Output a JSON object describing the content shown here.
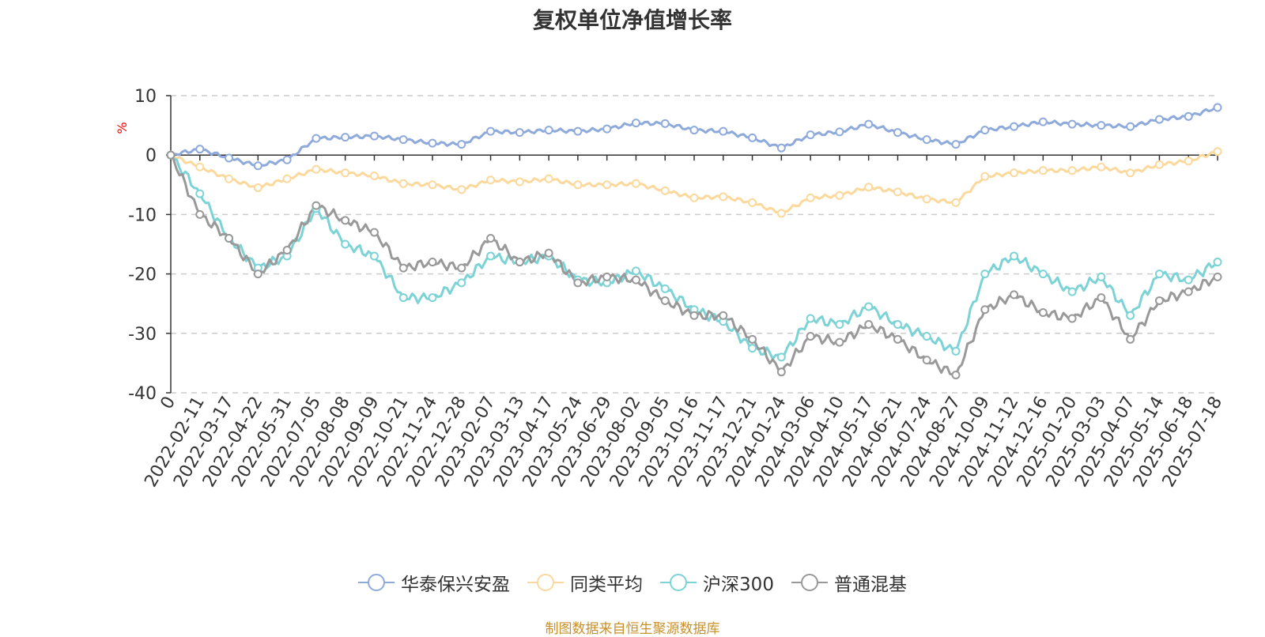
{
  "chart_data": {
    "type": "line",
    "title": "复权单位净值增长率",
    "ylabel": "%",
    "ylim": [
      -40,
      10
    ],
    "yticks": [
      "10",
      "0",
      "-10",
      "-20",
      "-30",
      "-40"
    ],
    "grid": true,
    "legend_position": "bottom",
    "x": [
      "0",
      "2022-02-11",
      "2022-03-17",
      "2022-04-22",
      "2022-05-31",
      "2022-07-05",
      "2022-08-08",
      "2022-09-09",
      "2022-10-21",
      "2022-11-24",
      "2022-12-28",
      "2023-02-07",
      "2023-03-13",
      "2023-04-17",
      "2023-05-24",
      "2023-06-29",
      "2023-08-02",
      "2023-09-05",
      "2023-10-16",
      "2023-11-17",
      "2023-12-21",
      "2024-01-24",
      "2024-03-06",
      "2024-04-10",
      "2024-05-17",
      "2024-06-21",
      "2024-07-24",
      "2024-08-27",
      "2024-10-09",
      "2024-11-12",
      "2024-12-16",
      "2025-01-20",
      "2025-03-03",
      "2025-04-07",
      "2025-05-14",
      "2025-06-18",
      "2025-07-18"
    ],
    "series": [
      {
        "name": "华泰保兴安盈",
        "color": "#8eaadb",
        "values": [
          0,
          1.0,
          -0.5,
          -1.8,
          -0.8,
          2.8,
          3.0,
          3.2,
          2.6,
          2.0,
          1.8,
          4.0,
          3.8,
          4.2,
          4.0,
          4.4,
          5.4,
          5.3,
          4.2,
          4.0,
          2.9,
          1.2,
          3.4,
          3.9,
          5.2,
          3.8,
          2.6,
          1.8,
          4.2,
          4.8,
          5.6,
          5.2,
          5.0,
          4.8,
          6.0,
          6.5,
          8.0
        ]
      },
      {
        "name": "同类平均",
        "color": "#fbd89c",
        "values": [
          0,
          -2.0,
          -4.0,
          -5.5,
          -4.0,
          -2.4,
          -3.0,
          -3.5,
          -4.8,
          -5.0,
          -5.8,
          -4.2,
          -4.5,
          -4.0,
          -5.0,
          -5.0,
          -4.8,
          -6.0,
          -7.2,
          -7.0,
          -8.0,
          -9.8,
          -7.2,
          -6.8,
          -5.4,
          -6.2,
          -7.4,
          -8.0,
          -3.6,
          -3.0,
          -2.6,
          -2.6,
          -2.0,
          -3.0,
          -1.6,
          -1.0,
          0.6
        ]
      },
      {
        "name": "沪深300",
        "color": "#7bd3d6",
        "values": [
          0,
          -6.5,
          -14.0,
          -19.0,
          -17.0,
          -9.0,
          -15.0,
          -17.0,
          -24.0,
          -24.0,
          -21.5,
          -17.0,
          -18.0,
          -17.0,
          -21.0,
          -21.5,
          -19.5,
          -22.5,
          -26.0,
          -28.0,
          -32.5,
          -34.0,
          -27.5,
          -28.5,
          -25.5,
          -28.5,
          -30.5,
          -33.0,
          -20.0,
          -17.0,
          -20.0,
          -23.0,
          -20.5,
          -27.0,
          -20.0,
          -21.0,
          -18.0
        ]
      },
      {
        "name": "普通混基",
        "color": "#999999",
        "values": [
          0,
          -10.0,
          -14.0,
          -20.0,
          -16.0,
          -8.5,
          -11.0,
          -13.0,
          -19.0,
          -18.0,
          -19.0,
          -14.0,
          -18.0,
          -16.5,
          -21.5,
          -20.5,
          -21.0,
          -24.5,
          -27.0,
          -27.0,
          -31.0,
          -36.5,
          -30.5,
          -31.5,
          -28.5,
          -31.0,
          -34.5,
          -37.0,
          -26.0,
          -23.5,
          -26.5,
          -27.5,
          -24.0,
          -31.0,
          -24.5,
          -23.0,
          -20.5
        ]
      }
    ]
  },
  "source_note": "制图数据来自恒生聚源数据库"
}
